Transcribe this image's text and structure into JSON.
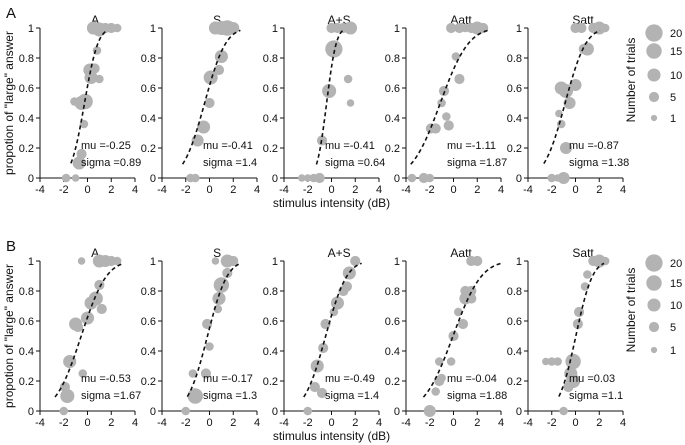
{
  "figure": {
    "legend": {
      "title": "Number of trials",
      "sizes": [
        20,
        15,
        10,
        5,
        1
      ],
      "labels": [
        "20",
        "15",
        "10",
        "5",
        "1"
      ]
    },
    "marker_color": "#b3b3b3",
    "curve_color": "#111111"
  },
  "chart_data": [
    {
      "type": "scatter",
      "row_label": "A",
      "xlabel": "stimulus intensity (dB)",
      "ylabel": "propotion of \"large\" answer",
      "xlim": [
        -4,
        4
      ],
      "ylim": [
        0,
        1
      ],
      "xticks": [
        -4,
        -2,
        0,
        2,
        4
      ],
      "yticks": [
        0,
        0.2,
        0.4,
        0.6,
        0.8,
        1
      ],
      "xtick_labels": [
        "-4",
        "-2",
        "0",
        "2",
        "4"
      ],
      "ytick_labels": [
        "0",
        "0.2",
        "0.4",
        "0.6",
        "0.8",
        "1"
      ],
      "panels": [
        {
          "title": "A",
          "mu": -0.25,
          "sigma": 0.89,
          "mu_label": "mu =-0.25",
          "sigma_label": "sigma =0.89",
          "points": [
            {
              "x": -1.8,
              "y": 0.0,
              "n": 3
            },
            {
              "x": -1.0,
              "y": 0.0,
              "n": 2
            },
            {
              "x": -0.7,
              "y": 0.1,
              "n": 10
            },
            {
              "x": -0.5,
              "y": 0.16,
              "n": 5
            },
            {
              "x": -1.1,
              "y": 0.51,
              "n": 3
            },
            {
              "x": -0.5,
              "y": 0.5,
              "n": 12
            },
            {
              "x": -0.2,
              "y": 0.51,
              "n": 15
            },
            {
              "x": -0.3,
              "y": 0.36,
              "n": 3
            },
            {
              "x": 0.2,
              "y": 0.72,
              "n": 10
            },
            {
              "x": 0.3,
              "y": 0.67,
              "n": 10
            },
            {
              "x": 0.6,
              "y": 0.73,
              "n": 5
            },
            {
              "x": 1.0,
              "y": 0.66,
              "n": 3
            },
            {
              "x": 0.8,
              "y": 0.85,
              "n": 3
            },
            {
              "x": 0.5,
              "y": 1.0,
              "n": 10
            },
            {
              "x": 1.0,
              "y": 0.99,
              "n": 12
            },
            {
              "x": 1.5,
              "y": 1.0,
              "n": 5
            },
            {
              "x": 2.0,
              "y": 1.0,
              "n": 5
            },
            {
              "x": 2.5,
              "y": 1.0,
              "n": 3
            }
          ]
        },
        {
          "title": "S",
          "mu": -0.41,
          "sigma": 1.4,
          "mu_label": "mu =-0.41",
          "sigma_label": "sigma =1.4",
          "points": [
            {
              "x": -1.6,
              "y": 0.0,
              "n": 3
            },
            {
              "x": -1.2,
              "y": 0.0,
              "n": 3
            },
            {
              "x": -1.0,
              "y": 0.25,
              "n": 8
            },
            {
              "x": -0.5,
              "y": 0.34,
              "n": 10
            },
            {
              "x": 0.0,
              "y": 0.5,
              "n": 5
            },
            {
              "x": 0.1,
              "y": 0.67,
              "n": 12
            },
            {
              "x": 0.8,
              "y": 0.72,
              "n": 5
            },
            {
              "x": 1.0,
              "y": 0.81,
              "n": 10
            },
            {
              "x": 0.5,
              "y": 1.0,
              "n": 10
            },
            {
              "x": 1.0,
              "y": 1.0,
              "n": 12
            },
            {
              "x": 1.5,
              "y": 1.0,
              "n": 15
            },
            {
              "x": 2.0,
              "y": 1.0,
              "n": 8
            }
          ]
        },
        {
          "title": "A+S",
          "mu": -0.41,
          "sigma": 0.64,
          "mu_label": "mu =-0.41",
          "sigma_label": "sigma =0.64",
          "points": [
            {
              "x": -2.5,
              "y": 0.0,
              "n": 2
            },
            {
              "x": -2.0,
              "y": 0.0,
              "n": 2
            },
            {
              "x": -1.5,
              "y": 0.0,
              "n": 3
            },
            {
              "x": -1.0,
              "y": 0.0,
              "n": 5
            },
            {
              "x": -0.8,
              "y": 0.25,
              "n": 5
            },
            {
              "x": -0.2,
              "y": 0.58,
              "n": 12
            },
            {
              "x": 1.4,
              "y": 0.66,
              "n": 3
            },
            {
              "x": 1.6,
              "y": 0.5,
              "n": 2
            },
            {
              "x": 0.2,
              "y": 0.86,
              "n": 20
            },
            {
              "x": 0.0,
              "y": 1.0,
              "n": 5
            },
            {
              "x": 0.5,
              "y": 1.0,
              "n": 5
            },
            {
              "x": 1.0,
              "y": 1.0,
              "n": 5
            },
            {
              "x": 1.6,
              "y": 1.0,
              "n": 10
            }
          ]
        },
        {
          "title": "Aatt",
          "mu": -1.11,
          "sigma": 1.87,
          "mu_label": "mu =-1.11",
          "sigma_label": "sigma =1.87",
          "points": [
            {
              "x": -3.5,
              "y": 0.0,
              "n": 3
            },
            {
              "x": -2.5,
              "y": 0.0,
              "n": 5
            },
            {
              "x": -2.0,
              "y": 0.0,
              "n": 3
            },
            {
              "x": -1.9,
              "y": 0.33,
              "n": 5
            },
            {
              "x": -1.5,
              "y": 0.33,
              "n": 5
            },
            {
              "x": -1.0,
              "y": 0.5,
              "n": 3
            },
            {
              "x": -0.6,
              "y": 0.41,
              "n": 3
            },
            {
              "x": -0.4,
              "y": 0.35,
              "n": 5
            },
            {
              "x": -0.8,
              "y": 0.58,
              "n": 5
            },
            {
              "x": 0.5,
              "y": 0.66,
              "n": 5
            },
            {
              "x": 0.2,
              "y": 0.81,
              "n": 3
            },
            {
              "x": -0.2,
              "y": 1.0,
              "n": 5
            },
            {
              "x": 0.5,
              "y": 1.0,
              "n": 5
            },
            {
              "x": 1.0,
              "y": 1.0,
              "n": 3
            },
            {
              "x": 1.5,
              "y": 1.0,
              "n": 5
            },
            {
              "x": 2.0,
              "y": 1.0,
              "n": 10
            },
            {
              "x": 2.5,
              "y": 1.0,
              "n": 5
            },
            {
              "x": 2.2,
              "y": 0.99,
              "n": 3
            }
          ]
        },
        {
          "title": "Satt",
          "mu": -0.87,
          "sigma": 1.38,
          "mu_label": "mu =-0.87",
          "sigma_label": "sigma =1.38",
          "points": [
            {
              "x": -2.0,
              "y": 0.0,
              "n": 3
            },
            {
              "x": -1.5,
              "y": 0.0,
              "n": 2
            },
            {
              "x": -1.0,
              "y": 0.0,
              "n": 8
            },
            {
              "x": -0.8,
              "y": 0.2,
              "n": 8
            },
            {
              "x": -1.2,
              "y": 0.36,
              "n": 3
            },
            {
              "x": -1.4,
              "y": 0.43,
              "n": 2
            },
            {
              "x": -1.2,
              "y": 0.6,
              "n": 10
            },
            {
              "x": -0.8,
              "y": 0.58,
              "n": 12
            },
            {
              "x": -0.5,
              "y": 0.5,
              "n": 8
            },
            {
              "x": 0.0,
              "y": 0.62,
              "n": 8
            },
            {
              "x": 0.7,
              "y": 0.86,
              "n": 5
            },
            {
              "x": 1.0,
              "y": 0.86,
              "n": 10
            },
            {
              "x": 0.0,
              "y": 1.0,
              "n": 5
            },
            {
              "x": 0.5,
              "y": 1.0,
              "n": 5
            },
            {
              "x": 1.5,
              "y": 1.0,
              "n": 5
            },
            {
              "x": 2.0,
              "y": 1.0,
              "n": 10
            },
            {
              "x": 2.5,
              "y": 1.0,
              "n": 3
            }
          ]
        }
      ]
    },
    {
      "type": "scatter",
      "row_label": "B",
      "xlabel": "stimulus intensity (dB)",
      "ylabel": "propotion of \"large\" answer",
      "xlim": [
        -4,
        4
      ],
      "ylim": [
        0,
        1
      ],
      "xticks": [
        -4,
        -2,
        0,
        2,
        4
      ],
      "yticks": [
        0,
        0.2,
        0.4,
        0.6,
        0.8,
        1
      ],
      "xtick_labels": [
        "-4",
        "-2",
        "0",
        "2",
        "4"
      ],
      "ytick_labels": [
        "0",
        "0.2",
        "0.4",
        "0.6",
        "0.8",
        "1"
      ],
      "panels": [
        {
          "title": "A",
          "mu": -0.53,
          "sigma": 1.67,
          "mu_label": "mu =-0.53",
          "sigma_label": "sigma =1.67",
          "points": [
            {
              "x": -2.0,
              "y": 0.0,
              "n": 3
            },
            {
              "x": -1.9,
              "y": 0.16,
              "n": 5
            },
            {
              "x": -1.7,
              "y": 0.1,
              "n": 12
            },
            {
              "x": -1.5,
              "y": 0.33,
              "n": 10
            },
            {
              "x": -1.0,
              "y": 0.58,
              "n": 10
            },
            {
              "x": -0.8,
              "y": 0.56,
              "n": 5
            },
            {
              "x": -0.4,
              "y": 0.25,
              "n": 3
            },
            {
              "x": 0.0,
              "y": 0.62,
              "n": 10
            },
            {
              "x": 0.3,
              "y": 0.72,
              "n": 10
            },
            {
              "x": 0.7,
              "y": 0.75,
              "n": 12
            },
            {
              "x": 1.0,
              "y": 0.84,
              "n": 5
            },
            {
              "x": 1.2,
              "y": 0.68,
              "n": 5
            },
            {
              "x": -0.5,
              "y": 1.0,
              "n": 2
            },
            {
              "x": 1.0,
              "y": 1.0,
              "n": 10
            },
            {
              "x": 1.5,
              "y": 1.0,
              "n": 8
            },
            {
              "x": 2.0,
              "y": 1.0,
              "n": 5
            },
            {
              "x": 2.5,
              "y": 1.0,
              "n": 3
            }
          ]
        },
        {
          "title": "S",
          "mu": -0.17,
          "sigma": 1.3,
          "mu_label": "mu =-0.17",
          "sigma_label": "sigma =1.3",
          "points": [
            {
              "x": -2.0,
              "y": 0.0,
              "n": 3
            },
            {
              "x": -1.2,
              "y": 0.1,
              "n": 15
            },
            {
              "x": -1.4,
              "y": 0.25,
              "n": 3
            },
            {
              "x": -0.3,
              "y": 0.25,
              "n": 5
            },
            {
              "x": 0.0,
              "y": 0.43,
              "n": 3
            },
            {
              "x": -0.2,
              "y": 0.58,
              "n": 5
            },
            {
              "x": 0.7,
              "y": 0.68,
              "n": 3
            },
            {
              "x": 0.8,
              "y": 0.75,
              "n": 10
            },
            {
              "x": 1.0,
              "y": 0.84,
              "n": 15
            },
            {
              "x": 1.5,
              "y": 0.92,
              "n": 5
            },
            {
              "x": 0.5,
              "y": 1.0,
              "n": 2
            },
            {
              "x": 1.5,
              "y": 1.0,
              "n": 10
            },
            {
              "x": 2.0,
              "y": 1.0,
              "n": 5
            }
          ]
        },
        {
          "title": "A+S",
          "mu": -0.49,
          "sigma": 1.4,
          "mu_label": "mu =-0.49",
          "sigma_label": "sigma =1.4",
          "points": [
            {
              "x": -2.0,
              "y": 0.0,
              "n": 3
            },
            {
              "x": -1.4,
              "y": 0.16,
              "n": 5
            },
            {
              "x": -1.2,
              "y": 0.3,
              "n": 10
            },
            {
              "x": -0.7,
              "y": 0.42,
              "n": 5
            },
            {
              "x": -0.5,
              "y": 0.58,
              "n": 5
            },
            {
              "x": 0.2,
              "y": 0.66,
              "n": 3
            },
            {
              "x": 0.5,
              "y": 0.72,
              "n": 10
            },
            {
              "x": 1.0,
              "y": 0.8,
              "n": 5
            },
            {
              "x": 1.3,
              "y": 0.83,
              "n": 5
            },
            {
              "x": 1.5,
              "y": 0.92,
              "n": 10
            },
            {
              "x": 2.0,
              "y": 1.0,
              "n": 5
            },
            {
              "x": -0.8,
              "y": 0.12,
              "n": 5
            }
          ]
        },
        {
          "title": "Aatt",
          "mu": -0.04,
          "sigma": 1.88,
          "mu_label": "mu =-0.04",
          "sigma_label": "sigma =1.88",
          "points": [
            {
              "x": -2.0,
              "y": 0.0,
              "n": 8
            },
            {
              "x": -1.5,
              "y": 0.13,
              "n": 3
            },
            {
              "x": -1.2,
              "y": 0.2,
              "n": 5
            },
            {
              "x": -1.0,
              "y": 0.22,
              "n": 3
            },
            {
              "x": -1.2,
              "y": 0.33,
              "n": 3
            },
            {
              "x": -0.2,
              "y": 0.33,
              "n": 3
            },
            {
              "x": 0.0,
              "y": 0.5,
              "n": 5
            },
            {
              "x": 0.8,
              "y": 0.58,
              "n": 5
            },
            {
              "x": 0.4,
              "y": 0.66,
              "n": 3
            },
            {
              "x": 1.0,
              "y": 0.75,
              "n": 8
            },
            {
              "x": 1.5,
              "y": 0.75,
              "n": 5
            },
            {
              "x": 1.0,
              "y": 0.8,
              "n": 5
            },
            {
              "x": 1.5,
              "y": 0.8,
              "n": 5
            },
            {
              "x": 1.5,
              "y": 1.0,
              "n": 5
            },
            {
              "x": 2.0,
              "y": 1.0,
              "n": 5
            }
          ]
        },
        {
          "title": "Satt",
          "mu": 0.03,
          "sigma": 1.1,
          "mu_label": "mu =0.03",
          "sigma_label": "sigma =1.1",
          "points": [
            {
              "x": -2.5,
              "y": 0.33,
              "n": 2
            },
            {
              "x": -2.0,
              "y": 0.33,
              "n": 3
            },
            {
              "x": -1.5,
              "y": 0.33,
              "n": 3
            },
            {
              "x": -1.0,
              "y": 0.0,
              "n": 3
            },
            {
              "x": -0.6,
              "y": 0.16,
              "n": 5
            },
            {
              "x": -0.4,
              "y": 0.25,
              "n": 10
            },
            {
              "x": -0.2,
              "y": 0.2,
              "n": 12
            },
            {
              "x": -0.2,
              "y": 0.33,
              "n": 15
            },
            {
              "x": 0.2,
              "y": 0.58,
              "n": 5
            },
            {
              "x": 0.3,
              "y": 0.66,
              "n": 5
            },
            {
              "x": 0.8,
              "y": 0.83,
              "n": 3
            },
            {
              "x": 1.0,
              "y": 0.91,
              "n": 3
            },
            {
              "x": 1.5,
              "y": 1.0,
              "n": 5
            },
            {
              "x": 2.0,
              "y": 1.0,
              "n": 10
            },
            {
              "x": 2.5,
              "y": 1.0,
              "n": 3
            }
          ]
        }
      ]
    }
  ]
}
